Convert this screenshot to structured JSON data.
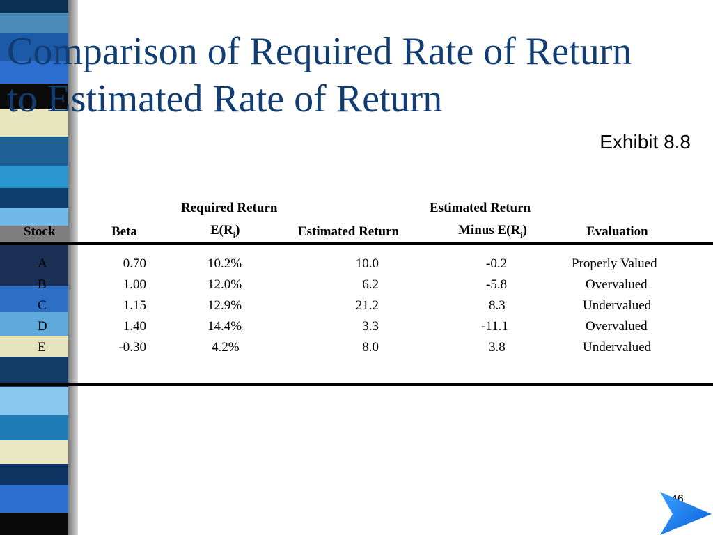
{
  "slide": {
    "title_line1": "Comparison of Required Rate of Return",
    "title_line2": "to Estimated Rate of Return",
    "exhibit": "Exhibit 8.8",
    "page_number": "46"
  },
  "table": {
    "headers": {
      "stock": "Stock",
      "beta": "Beta",
      "required_top": "Required Return",
      "required_bottom_prefix": "E(R",
      "required_bottom_sub": "i",
      "required_bottom_suffix": ")",
      "estimated": "Estimated Return",
      "diff_top": "Estimated Return",
      "diff_bottom_prefix": "Minus E(R",
      "diff_bottom_sub": "i",
      "diff_bottom_suffix": ")",
      "evaluation": "Evaluation"
    },
    "rows": [
      {
        "stock": "A",
        "beta": "0.70",
        "required": "10.2%",
        "estimated": "10.0",
        "diff": "-0.2",
        "evaluation": "Properly Valued"
      },
      {
        "stock": "B",
        "beta": "1.00",
        "required": "12.0%",
        "estimated": "6.2",
        "diff": "-5.8",
        "evaluation": "Overvalued"
      },
      {
        "stock": "C",
        "beta": "1.15",
        "required": "12.9%",
        "estimated": "21.2",
        "diff": "8.3",
        "evaluation": "Undervalued"
      },
      {
        "stock": "D",
        "beta": "1.40",
        "required": "14.4%",
        "estimated": "3.3",
        "diff": "-11.1",
        "evaluation": "Overvalued"
      },
      {
        "stock": "E",
        "beta": "-0.30",
        "required": "4.2%",
        "estimated": "8.0",
        "diff": "3.8",
        "evaluation": "Undervalued"
      }
    ]
  },
  "colors": {
    "title": "#123d73",
    "stripe": [
      "#1f4e8c",
      "#4aa3d6",
      "#e8e6c0",
      "#0a0a0a",
      "#2a6db5",
      "#7fc4e8",
      "#19507d"
    ]
  },
  "icons": {
    "next": "arrow-right-icon"
  }
}
